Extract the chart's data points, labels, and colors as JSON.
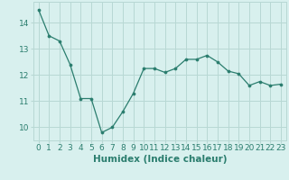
{
  "x": [
    0,
    1,
    2,
    3,
    4,
    5,
    6,
    7,
    8,
    9,
    10,
    11,
    12,
    13,
    14,
    15,
    16,
    17,
    18,
    19,
    20,
    21,
    22,
    23
  ],
  "y": [
    14.5,
    13.5,
    13.3,
    12.4,
    11.1,
    11.1,
    9.8,
    10.0,
    10.6,
    11.3,
    12.25,
    12.25,
    12.1,
    12.25,
    12.6,
    12.6,
    12.75,
    12.5,
    12.15,
    12.05,
    11.6,
    11.75,
    11.6,
    11.65
  ],
  "xlabel": "Humidex (Indice chaleur)",
  "ylim": [
    9.5,
    14.8
  ],
  "xlim": [
    -0.5,
    23.5
  ],
  "yticks": [
    10,
    11,
    12,
    13,
    14
  ],
  "xticks": [
    0,
    1,
    2,
    3,
    4,
    5,
    6,
    7,
    8,
    9,
    10,
    11,
    12,
    13,
    14,
    15,
    16,
    17,
    18,
    19,
    20,
    21,
    22,
    23
  ],
  "line_color": "#2a7d6e",
  "marker_color": "#2a7d6e",
  "bg_color": "#d8f0ee",
  "grid_color": "#b8d8d4",
  "tick_color": "#2a7d6e",
  "xlabel_color": "#2a7d6e",
  "xlabel_fontsize": 7.5,
  "tick_fontsize": 6.5
}
